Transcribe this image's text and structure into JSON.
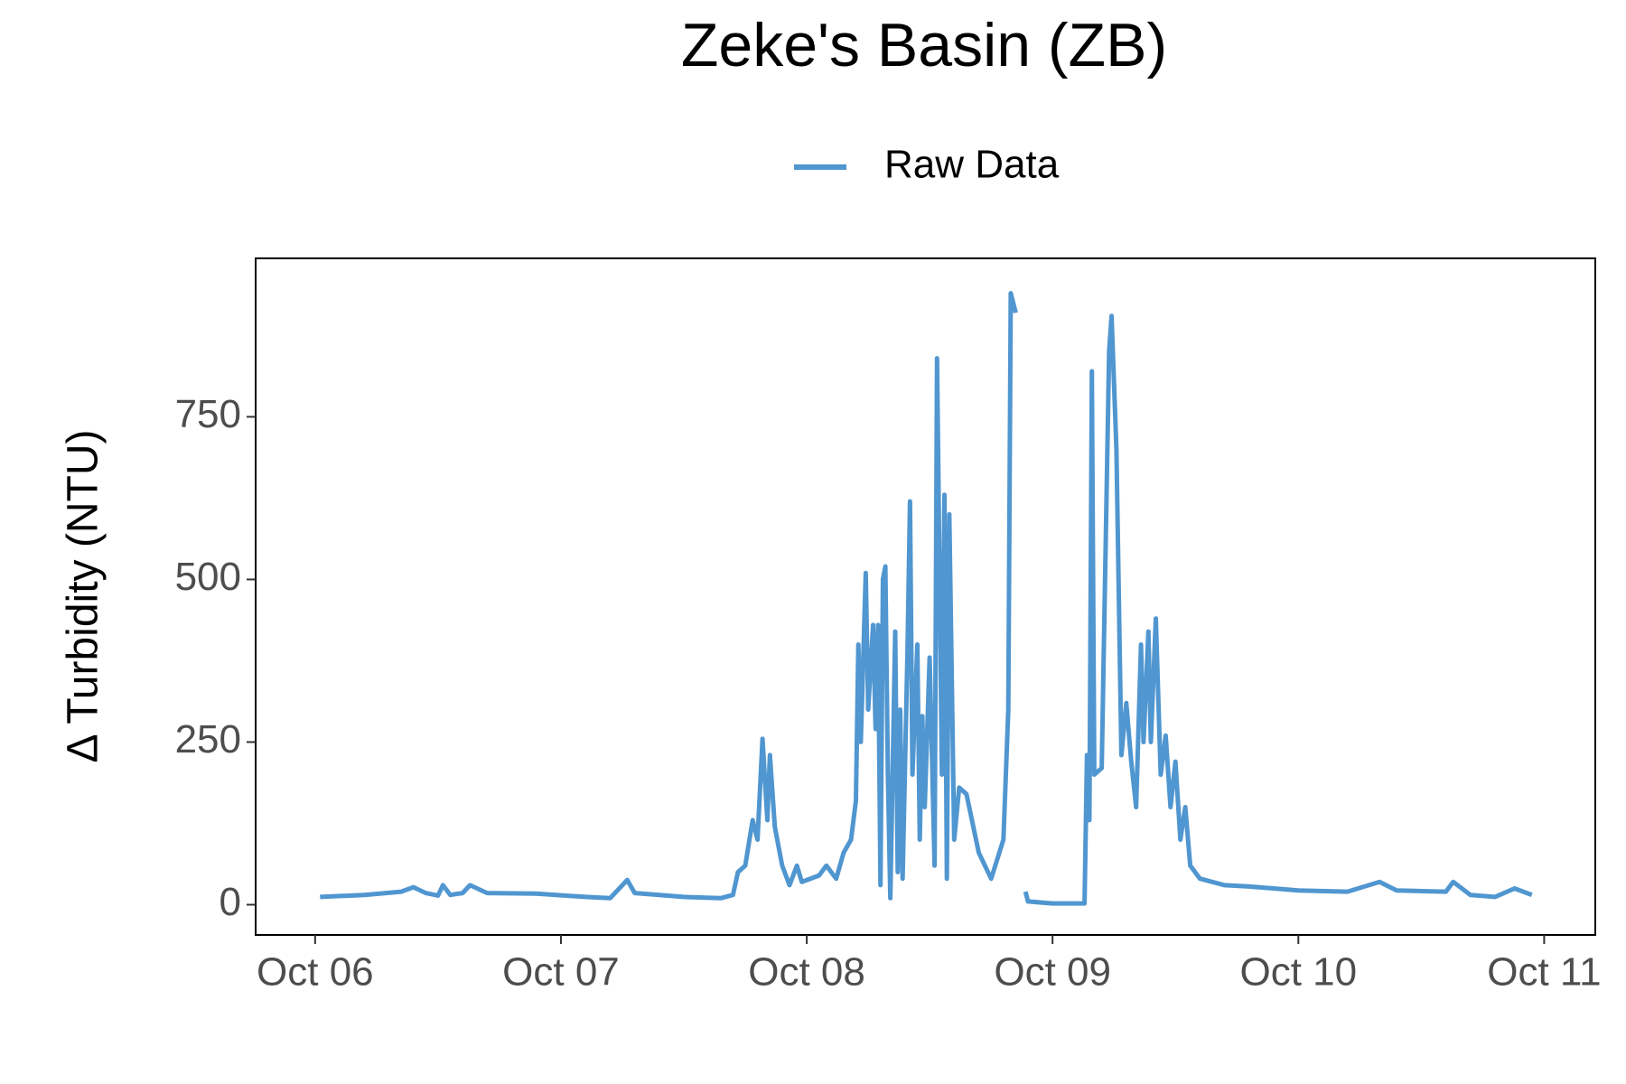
{
  "chart_data": {
    "type": "line",
    "title": "Zeke's Basin (ZB)",
    "y_label": "Δ Turbidity (NTU)",
    "x": [
      6.02,
      6.2,
      6.35,
      6.4,
      6.45,
      6.5,
      6.52,
      6.55,
      6.6,
      6.63,
      6.7,
      6.9,
      7.1,
      7.2,
      7.27,
      7.3,
      7.5,
      7.65,
      7.7,
      7.72,
      7.75,
      7.78,
      7.8,
      7.82,
      7.84,
      7.85,
      7.87,
      7.9,
      7.93,
      7.96,
      7.98,
      8.05,
      8.08,
      8.12,
      8.15,
      8.18,
      8.2,
      8.21,
      8.22,
      8.24,
      8.25,
      8.27,
      8.28,
      8.29,
      8.3,
      8.31,
      8.32,
      8.33,
      8.34,
      8.36,
      8.37,
      8.38,
      8.39,
      8.41,
      8.42,
      8.43,
      8.45,
      8.46,
      8.47,
      8.48,
      8.5,
      8.52,
      8.53,
      8.55,
      8.56,
      8.57,
      8.58,
      8.6,
      8.62,
      8.65,
      8.7,
      8.75,
      8.8,
      8.82,
      8.83,
      8.85,
      8.87,
      8.89,
      8.9,
      9.0,
      9.13,
      9.14,
      9.15,
      9.16,
      9.17,
      9.2,
      9.23,
      9.24,
      9.26,
      9.28,
      9.3,
      9.32,
      9.34,
      9.36,
      9.37,
      9.39,
      9.4,
      9.42,
      9.44,
      9.46,
      9.48,
      9.5,
      9.52,
      9.54,
      9.56,
      9.6,
      9.7,
      9.8,
      9.9,
      10.0,
      10.2,
      10.33,
      10.4,
      10.6,
      10.63,
      10.7,
      10.8,
      10.88,
      10.95
    ],
    "series": [
      {
        "name": "Raw Data",
        "color": "#5096d0",
        "values": [
          12,
          15,
          20,
          27,
          18,
          14,
          30,
          15,
          18,
          30,
          18,
          17,
          12,
          10,
          38,
          18,
          12,
          10,
          15,
          50,
          60,
          130,
          100,
          255,
          130,
          230,
          120,
          60,
          30,
          60,
          35,
          45,
          60,
          40,
          80,
          100,
          160,
          400,
          250,
          510,
          300,
          430,
          270,
          430,
          30,
          500,
          520,
          200,
          10,
          420,
          50,
          300,
          40,
          390,
          620,
          200,
          400,
          100,
          290,
          150,
          380,
          60,
          840,
          200,
          630,
          40,
          600,
          100,
          180,
          170,
          80,
          40,
          100,
          300,
          940,
          910,
          null,
          20,
          5,
          2,
          2,
          230,
          130,
          820,
          200,
          210,
          850,
          905,
          700,
          230,
          310,
          220,
          150,
          400,
          250,
          420,
          250,
          440,
          200,
          260,
          150,
          220,
          100,
          150,
          60,
          40,
          30,
          28,
          25,
          22,
          20,
          35,
          22,
          20,
          35,
          15,
          12,
          25,
          15
        ]
      }
    ],
    "xlim": [
      5.758,
      11.208
    ],
    "xticks": [
      {
        "value": 6,
        "label": "Oct 06"
      },
      {
        "value": 7,
        "label": "Oct 07"
      },
      {
        "value": 8,
        "label": "Oct 08"
      },
      {
        "value": 9,
        "label": "Oct 09"
      },
      {
        "value": 10,
        "label": "Oct 10"
      },
      {
        "value": 11,
        "label": "Oct 11"
      }
    ],
    "ylim": [
      -46.5,
      993.6
    ],
    "yticks": [
      0,
      250,
      500,
      750
    ]
  }
}
